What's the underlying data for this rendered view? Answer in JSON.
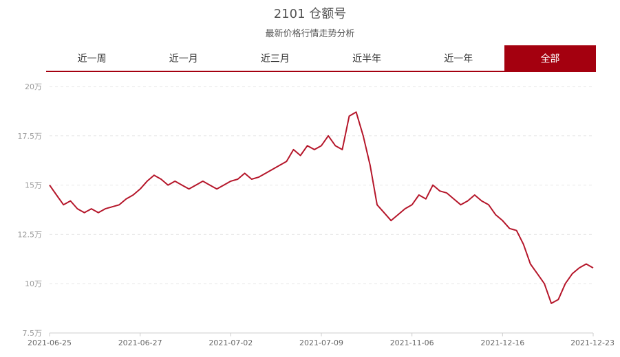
{
  "header": {
    "title": "2101 仓额号",
    "subtitle": "最新价格行情走势分析"
  },
  "tabs": [
    {
      "label": "近一周",
      "active": false
    },
    {
      "label": "近一月",
      "active": false
    },
    {
      "label": "近三月",
      "active": false
    },
    {
      "label": "近半年",
      "active": false
    },
    {
      "label": "近一年",
      "active": false
    },
    {
      "label": "全部",
      "active": true
    }
  ],
  "colors": {
    "line": "#b5162a",
    "accent": "#a4000f"
  },
  "chart_data": {
    "type": "line",
    "title": "",
    "xlabel": "",
    "ylabel": "",
    "ylim": [
      7.5,
      20
    ],
    "ytick_values": [
      7.5,
      10,
      12.5,
      15,
      17.5,
      20
    ],
    "ytick_labels": [
      "7.5万",
      "10万",
      "12.5万",
      "15万",
      "17.5万",
      "20万"
    ],
    "xtick_labels": [
      "2021-06-25",
      "2021-06-27",
      "2021-07-02",
      "2021-07-09",
      "2021-11-06",
      "2021-12-16",
      "2021-12-23"
    ],
    "grid": true,
    "series": [
      {
        "values": [
          15.0,
          14.5,
          14.0,
          14.2,
          13.8,
          13.6,
          13.8,
          13.6,
          13.8,
          13.9,
          14.0,
          14.3,
          14.5,
          14.8,
          15.2,
          15.5,
          15.3,
          15.0,
          15.2,
          15.0,
          14.8,
          15.0,
          15.2,
          15.0,
          14.8,
          15.0,
          15.2,
          15.3,
          15.6,
          15.3,
          15.4,
          15.6,
          15.8,
          16.0,
          16.2,
          16.8,
          16.5,
          17.0,
          16.8,
          17.0,
          17.5,
          17.0,
          16.8,
          18.5,
          18.7,
          17.5,
          16.0,
          14.0,
          13.6,
          13.2,
          13.5,
          13.8,
          14.0,
          14.5,
          14.3,
          15.0,
          14.7,
          14.6,
          14.3,
          14.0,
          14.2,
          14.5,
          14.2,
          14.0,
          13.5,
          13.2,
          12.8,
          12.7,
          12.0,
          11.0,
          10.5,
          10.0,
          9.0,
          9.2,
          10.0,
          10.5,
          10.8,
          11.0,
          10.8
        ]
      }
    ]
  }
}
